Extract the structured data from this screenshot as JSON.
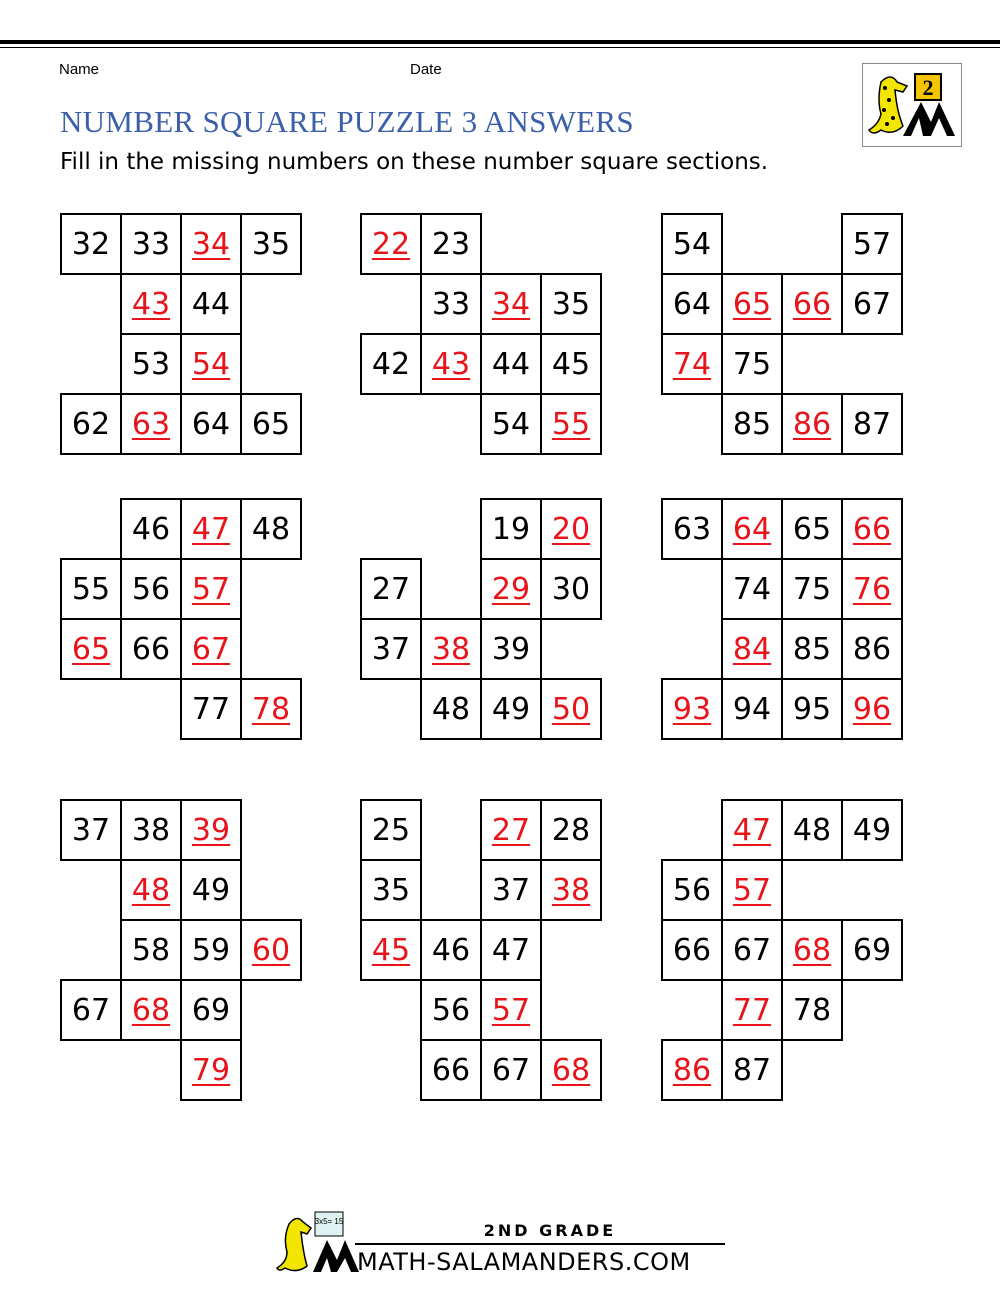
{
  "header": {
    "name_label": "Name",
    "date_label": "Date",
    "title": "NUMBER SQUARE PUZZLE 3 ANSWERS",
    "instructions": "Fill in the missing numbers on these number square sections.",
    "logo_text": "2"
  },
  "colors": {
    "title": "#3b5fa8",
    "answer": "#e8141b",
    "logo_yellow": "#f5c400"
  },
  "puzzles": [
    {
      "rows": [
        [
          "32",
          "33",
          {
            "n": "34",
            "answer": true
          },
          "35"
        ],
        [
          null,
          {
            "n": "43",
            "answer": true
          },
          "44",
          null
        ],
        [
          null,
          "53",
          {
            "n": "54",
            "answer": true
          },
          null
        ],
        [
          "62",
          {
            "n": "63",
            "answer": true
          },
          "64",
          "65"
        ]
      ]
    },
    {
      "rows": [
        [
          {
            "n": "22",
            "answer": true
          },
          "23",
          null,
          null
        ],
        [
          null,
          "33",
          {
            "n": "34",
            "answer": true
          },
          "35"
        ],
        [
          "42",
          {
            "n": "43",
            "answer": true
          },
          "44",
          "45"
        ],
        [
          null,
          null,
          "54",
          {
            "n": "55",
            "answer": true
          }
        ]
      ]
    },
    {
      "rows": [
        [
          "54",
          null,
          null,
          "57"
        ],
        [
          "64",
          {
            "n": "65",
            "answer": true
          },
          {
            "n": "66",
            "answer": true
          },
          "67"
        ],
        [
          {
            "n": "74",
            "answer": true
          },
          "75",
          null,
          null
        ],
        [
          null,
          "85",
          {
            "n": "86",
            "answer": true
          },
          "87"
        ]
      ]
    },
    {
      "rows": [
        [
          null,
          "46",
          {
            "n": "47",
            "answer": true
          },
          "48"
        ],
        [
          "55",
          "56",
          {
            "n": "57",
            "answer": true
          },
          null
        ],
        [
          {
            "n": "65",
            "answer": true
          },
          "66",
          {
            "n": "67",
            "answer": true
          },
          null
        ],
        [
          null,
          null,
          "77",
          {
            "n": "78",
            "answer": true
          }
        ]
      ]
    },
    {
      "rows": [
        [
          null,
          null,
          "19",
          {
            "n": "20",
            "answer": true
          }
        ],
        [
          "27",
          null,
          {
            "n": "29",
            "answer": true
          },
          "30"
        ],
        [
          "37",
          {
            "n": "38",
            "answer": true
          },
          "39",
          null
        ],
        [
          null,
          "48",
          "49",
          {
            "n": "50",
            "answer": true
          }
        ]
      ]
    },
    {
      "rows": [
        [
          "63",
          {
            "n": "64",
            "answer": true
          },
          "65",
          {
            "n": "66",
            "answer": true
          }
        ],
        [
          null,
          "74",
          "75",
          {
            "n": "76",
            "answer": true
          }
        ],
        [
          null,
          {
            "n": "84",
            "answer": true
          },
          "85",
          "86"
        ],
        [
          {
            "n": "93",
            "answer": true
          },
          "94",
          "95",
          {
            "n": "96",
            "answer": true
          }
        ]
      ]
    },
    {
      "rows": [
        [
          "37",
          "38",
          {
            "n": "39",
            "answer": true
          },
          null
        ],
        [
          null,
          {
            "n": "48",
            "answer": true
          },
          "49",
          null
        ],
        [
          null,
          "58",
          "59",
          {
            "n": "60",
            "answer": true
          }
        ],
        [
          "67",
          {
            "n": "68",
            "answer": true
          },
          "69",
          null
        ],
        [
          null,
          null,
          {
            "n": "79",
            "answer": true
          },
          null
        ]
      ]
    },
    {
      "rows": [
        [
          "25",
          null,
          {
            "n": "27",
            "answer": true
          },
          "28"
        ],
        [
          "35",
          null,
          "37",
          {
            "n": "38",
            "answer": true
          }
        ],
        [
          {
            "n": "45",
            "answer": true
          },
          "46",
          "47",
          null
        ],
        [
          null,
          "56",
          {
            "n": "57",
            "answer": true
          },
          null
        ],
        [
          null,
          "66",
          "67",
          {
            "n": "68",
            "answer": true
          }
        ]
      ]
    },
    {
      "rows": [
        [
          null,
          {
            "n": "47",
            "answer": true
          },
          "48",
          "49"
        ],
        [
          "56",
          {
            "n": "57",
            "answer": true
          },
          null,
          null
        ],
        [
          "66",
          "67",
          {
            "n": "68",
            "answer": true
          },
          "69"
        ],
        [
          null,
          {
            "n": "77",
            "answer": true
          },
          "78",
          null
        ],
        [
          {
            "n": "86",
            "answer": true
          },
          "87",
          null,
          null
        ]
      ]
    }
  ],
  "footer": {
    "grade": "2ND GRADE",
    "site": "MATH-SALAMANDERS.COM",
    "board_text": "3x5= 15"
  }
}
